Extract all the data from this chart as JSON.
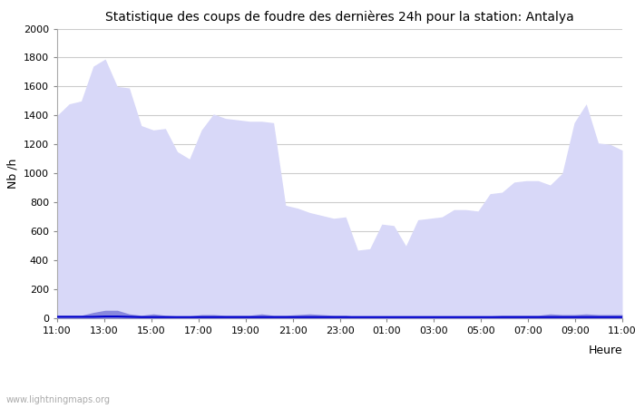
{
  "title": "Statistique des coups de foudre des dernières 24h pour la station: Antalya",
  "ylabel": "Nb /h",
  "xlabel": "Heure",
  "watermark": "www.lightningmaps.org",
  "xlim": [
    0,
    24
  ],
  "ylim": [
    0,
    2000
  ],
  "yticks": [
    0,
    200,
    400,
    600,
    800,
    1000,
    1200,
    1400,
    1600,
    1800,
    2000
  ],
  "xtick_labels": [
    "11:00",
    "13:00",
    "15:00",
    "17:00",
    "19:00",
    "21:00",
    "23:00",
    "01:00",
    "03:00",
    "05:00",
    "07:00",
    "09:00",
    "11:00"
  ],
  "xtick_positions": [
    0,
    2,
    4,
    6,
    8,
    10,
    12,
    14,
    16,
    18,
    20,
    22,
    24
  ],
  "bg_color": "#ffffff",
  "grid_color": "#cccccc",
  "total_foudre_color": "#d8d8f8",
  "foudre_antalya_color": "#8888dd",
  "moyenne_color": "#0000cc",
  "total_foudre_data": [
    1400,
    1480,
    1500,
    1740,
    1790,
    1600,
    1590,
    1330,
    1300,
    1310,
    1150,
    1100,
    1300,
    1410,
    1380,
    1370,
    1360,
    1360,
    1350,
    780,
    760,
    730,
    710,
    690,
    700,
    470,
    480,
    650,
    640,
    500,
    680,
    690,
    700,
    750,
    750,
    740,
    860,
    870,
    940,
    950,
    950,
    920,
    1000,
    1350,
    1480,
    1210,
    1200,
    1160
  ],
  "foudre_antalya_data": [
    20,
    20,
    20,
    40,
    55,
    55,
    30,
    20,
    30,
    20,
    15,
    15,
    25,
    25,
    20,
    20,
    20,
    30,
    20,
    20,
    25,
    30,
    25,
    20,
    20,
    10,
    10,
    15,
    15,
    10,
    10,
    10,
    10,
    10,
    10,
    10,
    15,
    20,
    20,
    20,
    20,
    30,
    25,
    25,
    30,
    25,
    25,
    25
  ],
  "moyenne_data": [
    10,
    10,
    10,
    10,
    12,
    12,
    10,
    8,
    8,
    8,
    8,
    8,
    8,
    8,
    8,
    8,
    8,
    8,
    8,
    8,
    8,
    8,
    8,
    8,
    8,
    8,
    8,
    8,
    8,
    8,
    8,
    8,
    8,
    8,
    8,
    8,
    8,
    8,
    8,
    8,
    8,
    8,
    8,
    8,
    8,
    8,
    8,
    8
  ],
  "n_points": 48
}
